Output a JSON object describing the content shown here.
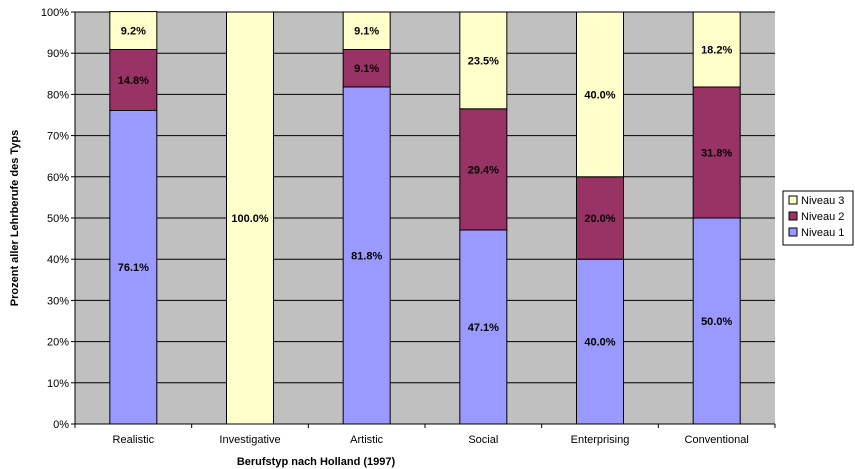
{
  "chart_data": {
    "type": "bar",
    "stacked": true,
    "percent": true,
    "categories": [
      "Realistic",
      "Investigative",
      "Artistic",
      "Social",
      "Enterprising",
      "Conventional"
    ],
    "series": [
      {
        "name": "Niveau 1",
        "values": [
          76.1,
          0,
          81.8,
          47.1,
          40.0,
          50.0
        ],
        "labels": [
          "76.1%",
          "",
          "81.8%",
          "47.1%",
          "40.0%",
          "50.0%"
        ]
      },
      {
        "name": "Niveau 2",
        "values": [
          14.8,
          0,
          9.1,
          29.4,
          20.0,
          31.8
        ],
        "labels": [
          "14.8%",
          "",
          "9.1%",
          "29.4%",
          "20.0%",
          "31.8%"
        ]
      },
      {
        "name": "Niveau 3",
        "values": [
          9.2,
          100.0,
          9.1,
          23.5,
          40.0,
          18.2
        ],
        "labels": [
          "9.2%",
          "100.0%",
          "9.1%",
          "23.5%",
          "40.0%",
          "18.2%"
        ]
      }
    ],
    "legend_order": [
      "Niveau 3",
      "Niveau 2",
      "Niveau 1"
    ],
    "colors": {
      "Niveau 1": "#9999ff",
      "Niveau 2": "#993366",
      "Niveau 3": "#ffffcc"
    },
    "plot_background": "#c0c0c0",
    "xlabel": "Berufstyp nach Holland (1997)",
    "ylabel": "Prozent aller Lehrberufe des Typs",
    "ylim": [
      0,
      100
    ],
    "yticks": [
      "0%",
      "10%",
      "20%",
      "30%",
      "40%",
      "50%",
      "60%",
      "70%",
      "80%",
      "90%",
      "100%"
    ],
    "grid": true,
    "legend_position": "right"
  }
}
